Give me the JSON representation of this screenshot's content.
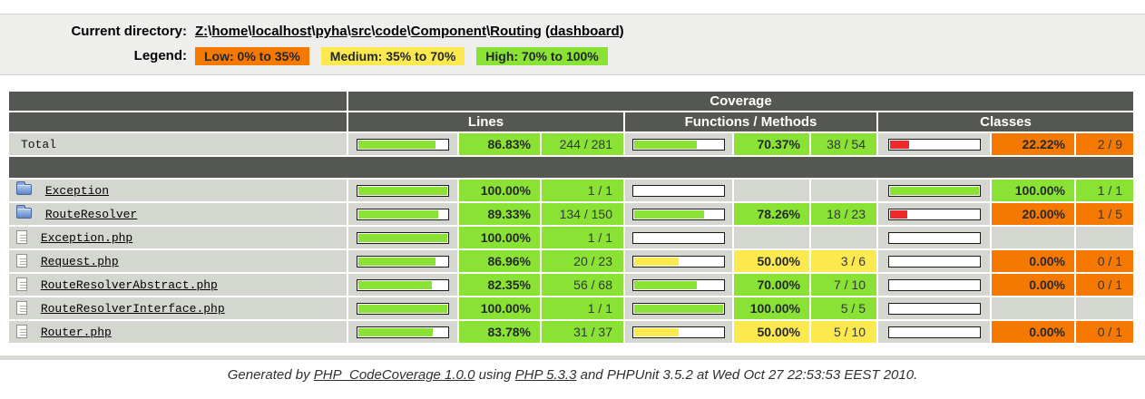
{
  "header": {
    "current_directory_label": "Current directory:",
    "path_segments": [
      "Z:",
      "home",
      "localhost",
      "pyha",
      "src",
      "code",
      "Component",
      "Routing"
    ],
    "path_separator": "\\",
    "dashboard_link": "dashboard",
    "legend_label": "Legend:",
    "legend": [
      {
        "label": "Low: 0% to 35%",
        "level": "low"
      },
      {
        "label": "Medium: 35% to 70%",
        "level": "medium"
      },
      {
        "label": "High: 70% to 100%",
        "level": "high"
      }
    ]
  },
  "colors": {
    "low": "#f57900",
    "medium": "#fce94f",
    "high": "#8ae234",
    "bar": {
      "low": "#ef2929",
      "medium": "#fce94f",
      "high": "#8ae234"
    },
    "header_bg": "#555753",
    "row_bg": "#d3d7cf"
  },
  "table": {
    "coverage_header": "Coverage",
    "group_headers": [
      "Lines",
      "Functions / Methods",
      "Classes"
    ],
    "rows": [
      {
        "name": "Total",
        "icon": "none",
        "link": false,
        "metrics": [
          {
            "pct": "86.83%",
            "pct_num": 86.83,
            "ratio": "244 / 281",
            "level": "high"
          },
          {
            "pct": "70.37%",
            "pct_num": 70.37,
            "ratio": "38 / 54",
            "level": "high"
          },
          {
            "pct": "22.22%",
            "pct_num": 22.22,
            "ratio": "2 / 9",
            "level": "low"
          }
        ]
      },
      {
        "name": "Exception",
        "icon": "folder",
        "link": true,
        "metrics": [
          {
            "pct": "100.00%",
            "pct_num": 100,
            "ratio": "1 / 1",
            "level": "high"
          },
          {
            "empty": true
          },
          {
            "pct": "100.00%",
            "pct_num": 100,
            "ratio": "1 / 1",
            "level": "high"
          }
        ]
      },
      {
        "name": "RouteResolver",
        "icon": "folder",
        "link": true,
        "metrics": [
          {
            "pct": "89.33%",
            "pct_num": 89.33,
            "ratio": "134 / 150",
            "level": "high"
          },
          {
            "pct": "78.26%",
            "pct_num": 78.26,
            "ratio": "18 / 23",
            "level": "high"
          },
          {
            "pct": "20.00%",
            "pct_num": 20,
            "ratio": "1 / 5",
            "level": "low"
          }
        ]
      },
      {
        "name": "Exception.php",
        "icon": "file",
        "link": true,
        "metrics": [
          {
            "pct": "100.00%",
            "pct_num": 100,
            "ratio": "1 / 1",
            "level": "high"
          },
          {
            "empty": true
          },
          {
            "empty": true
          }
        ]
      },
      {
        "name": "Request.php",
        "icon": "file",
        "link": true,
        "metrics": [
          {
            "pct": "86.96%",
            "pct_num": 86.96,
            "ratio": "20 / 23",
            "level": "high"
          },
          {
            "pct": "50.00%",
            "pct_num": 50,
            "ratio": "3 / 6",
            "level": "medium"
          },
          {
            "pct": "0.00%",
            "pct_num": 0,
            "ratio": "0 / 1",
            "level": "low"
          }
        ]
      },
      {
        "name": "RouteResolverAbstract.php",
        "icon": "file",
        "link": true,
        "metrics": [
          {
            "pct": "82.35%",
            "pct_num": 82.35,
            "ratio": "56 / 68",
            "level": "high"
          },
          {
            "pct": "70.00%",
            "pct_num": 70,
            "ratio": "7 / 10",
            "level": "high"
          },
          {
            "pct": "0.00%",
            "pct_num": 0,
            "ratio": "0 / 1",
            "level": "low"
          }
        ]
      },
      {
        "name": "RouteResolverInterface.php",
        "icon": "file",
        "link": true,
        "metrics": [
          {
            "pct": "100.00%",
            "pct_num": 100,
            "ratio": "1 / 1",
            "level": "high"
          },
          {
            "pct": "100.00%",
            "pct_num": 100,
            "ratio": "5 / 5",
            "level": "high"
          },
          {
            "empty": true
          }
        ]
      },
      {
        "name": "Router.php",
        "icon": "file",
        "link": true,
        "metrics": [
          {
            "pct": "83.78%",
            "pct_num": 83.78,
            "ratio": "31 / 37",
            "level": "high"
          },
          {
            "pct": "50.00%",
            "pct_num": 50,
            "ratio": "5 / 10",
            "level": "medium"
          },
          {
            "pct": "0.00%",
            "pct_num": 0,
            "ratio": "0 / 1",
            "level": "low"
          }
        ]
      }
    ]
  },
  "footer": {
    "prefix": "Generated by ",
    "tool_link": "PHP_CodeCoverage 1.0.0",
    "middle": " using ",
    "php_link": "PHP 5.3.3",
    "suffix": " and PHPUnit 3.5.2 at Wed Oct 27 22:53:53 EEST 2010."
  }
}
